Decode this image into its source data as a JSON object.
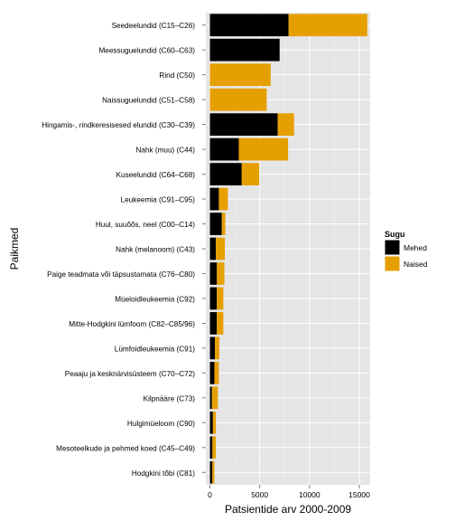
{
  "chart_data": {
    "type": "bar",
    "orientation": "horizontal",
    "stacked": true,
    "xlabel": "Patsientide arv 2000-2009",
    "ylabel": "Paikmed",
    "xlim": [
      0,
      16500
    ],
    "xticks": [
      0,
      5000,
      10000,
      15000
    ],
    "xtick_labels": [
      "0",
      "5000",
      "10000",
      "15000"
    ],
    "grid": true,
    "legend_placement": "right",
    "legend_title": "Sugu",
    "categories": [
      "Seedeelundid (C15–C26)",
      "Meessuguelundid (C60–C63)",
      "Rind (C50)",
      "Naissuguelundid (C51–C58)",
      "Hingamis-, rindkeresisesed elundid (C30–C39)",
      "Nahk (muu) (C44)",
      "Kuseelundid (C64–C68)",
      "Leukeemia (C91–C95)",
      "Huul, suuõõs, neel (C00–C14)",
      "Nahk (melanoom) (C43)",
      "Paige teadmata või täpsustamata (C76–C80)",
      "Müeloidleukeemia (C92)",
      "Mitte-Hodgkini lümfoom (C82–C85/96)",
      "Lümfoidleukeemia (C91)",
      "Peaaju ja kesknärvisüsteem (C70–C72)",
      "Kilpnääre (C73)",
      "Hulgimüeloom (C90)",
      "Mesoteelkude ja pehmed koed (C45–C49)",
      "Hodgkini tõbi (C81)"
    ],
    "series": [
      {
        "name": "Mehed",
        "color": "#000000",
        "values": [
          7900,
          7000,
          0,
          0,
          6800,
          2900,
          3200,
          900,
          1200,
          600,
          700,
          700,
          700,
          500,
          450,
          200,
          300,
          250,
          250
        ]
      },
      {
        "name": "Naised",
        "color": "#E69F00",
        "values": [
          7900,
          0,
          6100,
          5700,
          1650,
          4950,
          1750,
          900,
          350,
          900,
          750,
          650,
          650,
          450,
          450,
          600,
          300,
          350,
          200
        ]
      }
    ]
  }
}
